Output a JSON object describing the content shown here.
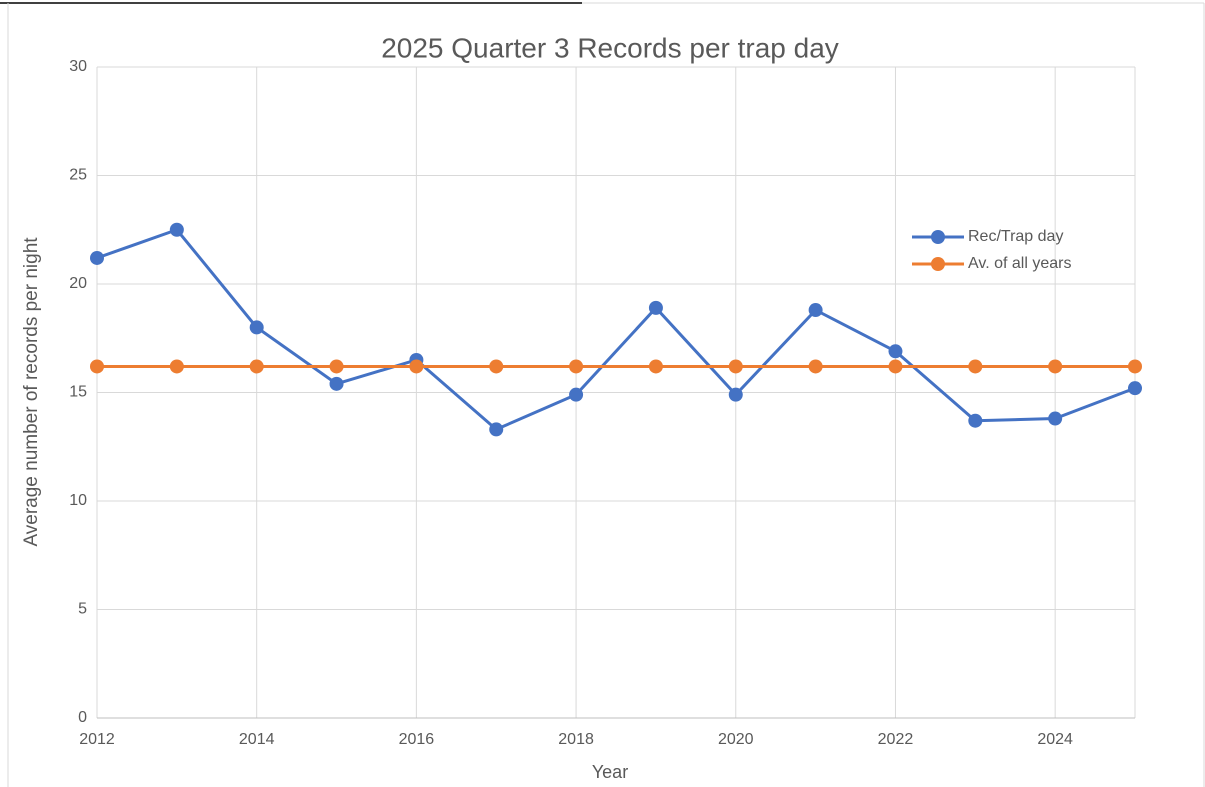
{
  "chart_data": {
    "type": "line",
    "title": "2025 Quarter 3 Records per trap day",
    "xlabel": "Year",
    "ylabel": "Average number of records per night",
    "x": [
      2012,
      2013,
      2014,
      2015,
      2016,
      2017,
      2018,
      2019,
      2020,
      2021,
      2022,
      2023,
      2024,
      2025
    ],
    "series": [
      {
        "name": "Rec/Trap day",
        "color": "#4472c4",
        "values": [
          21.2,
          22.5,
          18.0,
          15.4,
          16.5,
          13.3,
          14.9,
          18.9,
          14.9,
          18.8,
          16.9,
          13.7,
          13.8,
          15.2
        ]
      },
      {
        "name": "Av. of all years",
        "color": "#ed7d31",
        "values": [
          16.2,
          16.2,
          16.2,
          16.2,
          16.2,
          16.2,
          16.2,
          16.2,
          16.2,
          16.2,
          16.2,
          16.2,
          16.2,
          16.2
        ]
      }
    ],
    "xlim": [
      2012,
      2025
    ],
    "xticks": [
      2012,
      2014,
      2016,
      2018,
      2020,
      2022,
      2024
    ],
    "ylim": [
      0,
      30
    ],
    "yticks": [
      0,
      5,
      10,
      15,
      20,
      25,
      30
    ],
    "grid": true,
    "legend": "right"
  }
}
